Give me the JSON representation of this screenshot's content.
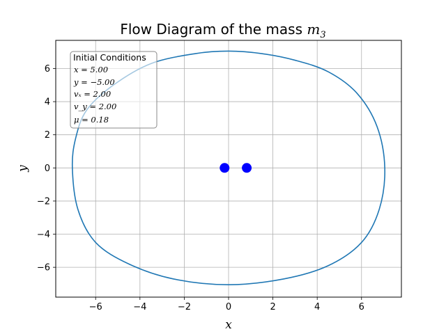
{
  "chart_data": {
    "type": "line",
    "title": "Flow Diagram of the mass ",
    "title_math": "m",
    "title_math_sub": "3",
    "xlabel": "x",
    "ylabel": "y",
    "xlim": [
      -7.8,
      7.8
    ],
    "ylim": [
      -7.8,
      7.7
    ],
    "xticks": [
      -6,
      -4,
      -2,
      0,
      2,
      4,
      6
    ],
    "yticks": [
      -6,
      -4,
      -2,
      0,
      2,
      4,
      6
    ],
    "xtick_labels": [
      "−6",
      "−4",
      "−2",
      "0",
      "2",
      "4",
      "6"
    ],
    "ytick_labels": [
      "−6",
      "−4",
      "−2",
      "0",
      "2",
      "4",
      "6"
    ],
    "grid": true,
    "series": [
      {
        "color": "#1f77b4",
        "x": [
          0.0,
          1.5,
          3.0,
          4.5,
          5.8,
          6.7,
          7.05,
          6.8,
          6.0,
          4.5,
          2.5,
          0.0,
          -2.5,
          -4.5,
          -6.0,
          -6.8,
          -7.05,
          -6.9,
          -6.4,
          -5.2,
          -3.5,
          -1.5,
          0.0
        ],
        "y": [
          7.05,
          6.9,
          6.5,
          5.8,
          4.5,
          2.5,
          0.0,
          -2.5,
          -4.5,
          -5.9,
          -6.7,
          -7.05,
          -6.7,
          -5.8,
          -4.5,
          -2.5,
          0.0,
          1.8,
          3.5,
          5.0,
          6.3,
          6.9,
          7.05
        ]
      }
    ],
    "masses": [
      {
        "x": -0.18,
        "y": 0.0,
        "color": "#0000ff"
      },
      {
        "x": 0.82,
        "y": 0.0,
        "color": "#0000ff"
      }
    ],
    "annotation": {
      "title": "Initial Conditions",
      "lines": [
        "x = 5.00",
        "y = −5.00",
        "vₓ = 2.00",
        "v_y = 2.00",
        "μ = 0.18"
      ],
      "placement": "top-left"
    }
  }
}
